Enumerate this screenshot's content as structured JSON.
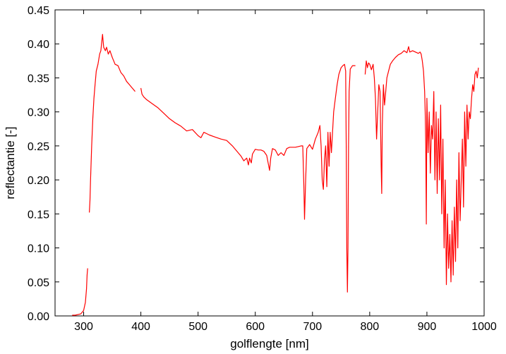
{
  "chart_data": {
    "type": "line",
    "title": "",
    "xlabel": "golflengte  [nm]",
    "ylabel": "reflectantie  [-]",
    "xlim": [
      250,
      1000
    ],
    "ylim": [
      0,
      0.45
    ],
    "x_ticks": [
      300,
      400,
      500,
      600,
      700,
      800,
      900,
      1000
    ],
    "x_tick_labels": [
      "300",
      "400",
      "500",
      "600",
      "700",
      "800",
      "900",
      "1000"
    ],
    "y_ticks": [
      0,
      0.05,
      0.1,
      0.15,
      0.2,
      0.25,
      0.3,
      0.35,
      0.4,
      0.45
    ],
    "y_tick_labels": [
      "0.00",
      "0.05",
      "0.10",
      "0.15",
      "0.20",
      "0.25",
      "0.30",
      "0.35",
      "0.40",
      "0.45"
    ],
    "grid": false,
    "legend": "none",
    "series": [
      {
        "color": "#ff0000",
        "segments": [
          {
            "x": [
              280,
              285,
              290,
              295,
              300,
              303,
              305,
              306,
              307
            ],
            "y": [
              0.001,
              0.001,
              0.002,
              0.003,
              0.008,
              0.02,
              0.04,
              0.06,
              0.07
            ]
          },
          {
            "x": [
              310,
              311,
              312,
              314,
              316,
              318,
              320,
              322,
              325,
              328,
              330,
              333,
              335,
              338,
              340,
              343,
              346,
              350,
              355,
              360,
              365,
              370,
              375,
              380,
              385,
              390
            ],
            "y": [
              0.152,
              0.17,
              0.2,
              0.25,
              0.29,
              0.32,
              0.34,
              0.36,
              0.37,
              0.385,
              0.39,
              0.414,
              0.395,
              0.39,
              0.395,
              0.385,
              0.39,
              0.38,
              0.37,
              0.368,
              0.358,
              0.353,
              0.345,
              0.34,
              0.335,
              0.33
            ]
          },
          {
            "x": [
              400,
              402,
              405,
              410,
              420,
              430,
              440,
              450,
              460,
              470,
              480,
              490,
              500,
              505,
              510,
              515,
              520,
              530,
              540,
              550,
              560,
              570,
              575,
              580,
              585,
              588,
              590,
              593,
              595,
              600,
              605,
              610,
              615,
              620,
              625,
              627,
              630,
              635,
              640,
              645,
              650,
              655,
              660,
              665,
              670,
              675,
              680,
              683,
              685,
              686,
              688,
              690,
              695,
              700,
              705,
              710,
              713,
              715,
              717,
              719,
              721,
              723,
              725,
              727,
              729,
              731,
              733,
              735,
              737,
              740,
              743,
              746,
              750,
              753,
              756,
              758,
              759,
              760,
              761,
              762,
              763,
              764,
              766,
              770,
              775
            ],
            "y": [
              0.335,
              0.326,
              0.322,
              0.318,
              0.312,
              0.306,
              0.298,
              0.29,
              0.284,
              0.279,
              0.272,
              0.274,
              0.265,
              0.262,
              0.27,
              0.268,
              0.266,
              0.263,
              0.26,
              0.258,
              0.25,
              0.24,
              0.235,
              0.228,
              0.232,
              0.222,
              0.232,
              0.225,
              0.238,
              0.245,
              0.244,
              0.244,
              0.242,
              0.236,
              0.214,
              0.232,
              0.246,
              0.244,
              0.236,
              0.24,
              0.236,
              0.246,
              0.248,
              0.248,
              0.248,
              0.249,
              0.25,
              0.25,
              0.19,
              0.142,
              0.2,
              0.246,
              0.252,
              0.245,
              0.26,
              0.27,
              0.28,
              0.25,
              0.2,
              0.186,
              0.23,
              0.25,
              0.19,
              0.27,
              0.22,
              0.27,
              0.24,
              0.27,
              0.3,
              0.32,
              0.34,
              0.355,
              0.365,
              0.368,
              0.37,
              0.36,
              0.25,
              0.1,
              0.035,
              0.1,
              0.25,
              0.33,
              0.363,
              0.368,
              0.368
            ]
          },
          {
            "x": [
              792,
              794,
              796,
              798,
              800,
              803,
              806,
              808,
              810,
              812,
              814,
              816,
              818,
              820,
              821,
              822,
              824,
              826,
              828,
              830,
              833,
              836,
              840,
              845,
              850,
              855,
              860,
              865,
              868,
              870,
              875,
              880,
              885,
              888,
              890,
              892,
              894,
              896,
              897,
              898,
              899,
              900,
              902,
              904,
              906,
              908,
              910,
              912,
              914,
              916,
              918,
              920,
              922,
              924,
              926,
              928,
              930,
              932,
              934,
              936,
              938,
              940,
              942,
              944,
              946,
              948,
              950,
              952,
              954,
              956,
              958,
              960,
              962,
              964,
              966,
              968,
              970,
              972,
              974,
              976,
              978,
              980,
              982,
              984,
              986,
              988,
              990
            ],
            "y": [
              0.355,
              0.375,
              0.365,
              0.372,
              0.37,
              0.362,
              0.37,
              0.35,
              0.32,
              0.26,
              0.3,
              0.34,
              0.33,
              0.22,
              0.18,
              0.28,
              0.34,
              0.31,
              0.33,
              0.35,
              0.36,
              0.37,
              0.375,
              0.38,
              0.384,
              0.386,
              0.39,
              0.387,
              0.396,
              0.388,
              0.39,
              0.388,
              0.386,
              0.388,
              0.385,
              0.375,
              0.36,
              0.33,
              0.3,
              0.25,
              0.135,
              0.32,
              0.24,
              0.3,
              0.21,
              0.28,
              0.26,
              0.33,
              0.2,
              0.3,
              0.18,
              0.29,
              0.2,
              0.31,
              0.15,
              0.26,
              0.1,
              0.2,
              0.046,
              0.15,
              0.07,
              0.12,
              0.05,
              0.14,
              0.06,
              0.16,
              0.08,
              0.2,
              0.1,
              0.24,
              0.14,
              0.2,
              0.26,
              0.16,
              0.3,
              0.22,
              0.31,
              0.26,
              0.3,
              0.29,
              0.32,
              0.34,
              0.33,
              0.355,
              0.36,
              0.35,
              0.365
            ]
          }
        ]
      }
    ]
  }
}
